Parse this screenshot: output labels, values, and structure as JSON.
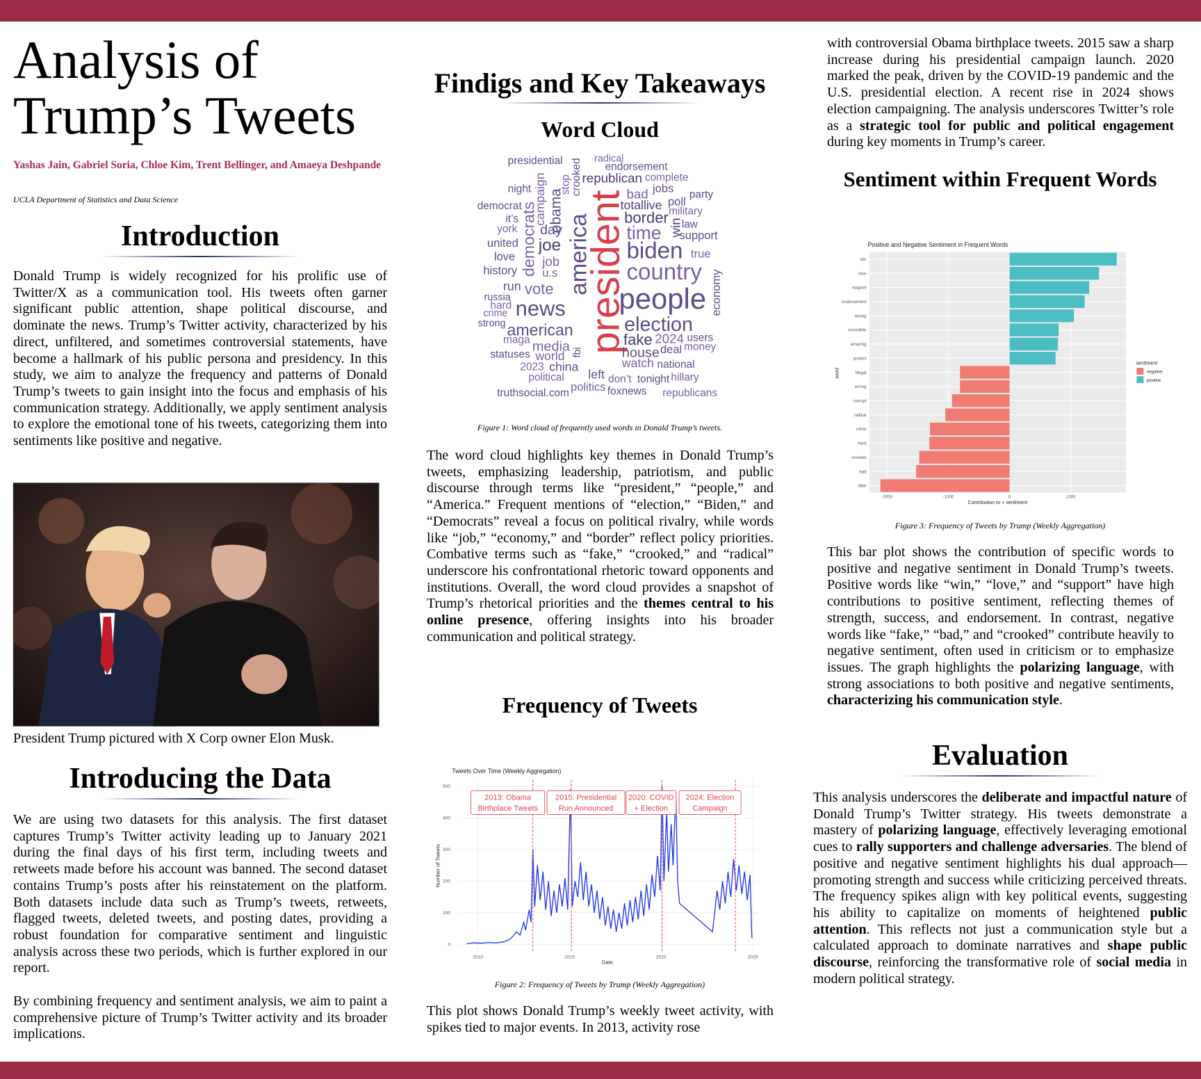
{
  "title": "Analysis of Trump’s Tweets",
  "authors": "Yashas Jain, Gabriel Soria, Chloe Kim, Trent Bellinger, and Amaeya Deshpande",
  "affiliation": "UCLA Department of Statistics and Data Science",
  "introduction": {
    "heading": "Introduction",
    "text": [
      {
        "text": "Donald Trump is widely recognized for his prolific use of Twitter/X as a communication tool. His tweets often garner significant public attention, shape political discourse, and dominate the news. Trump’s Twitter activity, characterized by his direct, unfiltered, and sometimes controversial statements, have become a hallmark of his public persona and presidency. In this study, we aim to analyze the frequency and patterns of Donald Trump’s tweets to gain insight into the focus and emphasis of his communication strategy. Additionally, we apply sentiment analysis to explore the emotional tone of his tweets, categorizing them into sentiments like positive and negative."
      }
    ]
  },
  "photo": {
    "caption": "President Trump pictured with X Corp owner Elon Musk."
  },
  "data_section": {
    "heading": "Introducing the Data",
    "text": [
      {
        "text": "We are using two datasets for this analysis. The first dataset captures Trump’s Twitter activity leading up to January 2021 during the final days of his first term, including tweets and retweets made before his account was banned. The second dataset contains Trump’s posts after his reinstatement on the platform. Both datasets include data such as Trump’s tweets, retweets, flagged tweets, deleted tweets, and posting dates, providing a robust foundation for comparative sentiment and linguistic analysis across these two periods, which is further explored in our report."
      }
    ],
    "text_2": [
      {
        "text": "By combining frequency and sentiment analysis, we aim to paint a comprehensive picture of Trump’s Twitter activity and its broader implications."
      }
    ]
  },
  "findings": {
    "heading": "Findigs and Key Takeaways"
  },
  "word_cloud": {
    "heading": "Word Cloud",
    "caption": "Figure 1: Word cloud of frequently used words in Donald Trump’s tweets.",
    "text": [
      {
        "text": "The word cloud highlights key themes in Donald Trump’s tweets, emphasizing leadership, patriotism, and public discourse through terms like “president,” “people,” and “America.” Frequent mentions of “election,” “Biden,” and “Democrats” reveal a focus on political rivalry, while words like “job,” “economy,” and “border” reflect policy priorities. Combative terms such as “fake,” “crooked,” and “radical” underscore his confrontational rhetoric toward opponents and institutions. Overall, the word cloud provides a snapshot of Trump’s rhetorical priorities and the "
      },
      {
        "text": "themes central to his online presence",
        "bold": true
      },
      {
        "text": ", offering insights into his broader communication and political strategy."
      }
    ]
  },
  "frequency": {
    "heading": "Frequency of Tweets",
    "caption": "Figure 2: Frequency of Tweets by Trump (Weekly Aggregation)",
    "text": [
      {
        "text": "This plot shows Donald Trump’s weekly tweet activity, with spikes tied to major events. In 2013, activity rose"
      }
    ],
    "text_continued": [
      {
        "text": "with controversial Obama birthplace tweets. 2015 saw a sharp increase during his presidential campaign launch. 2020 marked the peak, driven by the COVID-19 pandemic and the U.S. presidential election. A recent rise in 2024 shows election campaigning. The analysis underscores Twitter’s role as a "
      },
      {
        "text": "strategic tool for public and political engagement",
        "bold": true
      },
      {
        "text": " during key moments in Trump’s career."
      }
    ]
  },
  "sentiment": {
    "heading": "Sentiment within Frequent Words",
    "caption": "Figure 3: Frequency of Tweets by Trump (Weekly Aggregation)",
    "text": [
      {
        "text": "This bar plot shows the contribution of specific words to positive and negative sentiment in Donald Trump’s tweets. Positive words like “win,” “love,” and “support” have high contributions to positive sentiment, reflecting themes of strength, success, and endorsement. In contrast, negative words like “fake,” “bad,” and “crooked” contribute heavily to negative sentiment, often used in criticism or to emphasize issues. The graph highlights the "
      },
      {
        "text": "polarizing language",
        "bold": true
      },
      {
        "text": ", with strong associations to both positive and negative sentiments, "
      },
      {
        "text": "characterizing his communication style",
        "bold": true
      },
      {
        "text": "."
      }
    ]
  },
  "evaluation": {
    "heading": "Evaluation",
    "text": [
      {
        "text": "This analysis underscores the "
      },
      {
        "text": "deliberate and impactful nature",
        "bold": true
      },
      {
        "text": " of Donald Trump’s Twitter strategy. His tweets demonstrate a mastery of "
      },
      {
        "text": "polarizing language",
        "bold": true
      },
      {
        "text": ", effectively leveraging emotional cues to "
      },
      {
        "text": "rally supporters and challenge adversaries",
        "bold": true
      },
      {
        "text": ". The blend of positive and negative sentiment highlights his dual approach—promoting strength and success while criticizing perceived threats. The frequency spikes align with key political events, suggesting his ability to capitalize on moments of heightened "
      },
      {
        "text": "public attention",
        "bold": true
      },
      {
        "text": ". This reflects not just a communication style but a calculated approach to dominate narratives and "
      },
      {
        "text": "shape public discourse",
        "bold": true
      },
      {
        "text": ", reinforcing the transformative role of "
      },
      {
        "text": "social media",
        "bold": true
      },
      {
        "text": " in modern political strategy."
      }
    ]
  },
  "chart_data": [
    {
      "type": "wordcloud",
      "words": [
        "presidential",
        "radical",
        "endorsement",
        "night",
        "campaign",
        "obama",
        "stop",
        "crooked",
        "republican",
        "complete",
        "jobs",
        "bad",
        "party",
        "democrat",
        "totallive",
        "poll",
        "military",
        "it’s",
        "democrats",
        "day",
        "america",
        "president",
        "win",
        "law",
        "border",
        "york",
        "support",
        "time",
        "united",
        "joe",
        "biden",
        "true",
        "love",
        "job",
        "history",
        "u.s",
        "country",
        "economy",
        "run",
        "vote",
        "people",
        "russia",
        "hard",
        "news",
        "crime",
        "election",
        "strong",
        "american",
        "maga",
        "fake",
        "2024",
        "users",
        "media",
        "deal",
        "money",
        "statuses",
        "world",
        "fbi",
        "house",
        "watch",
        "national",
        "2023",
        "china",
        "political",
        "left",
        "don’t",
        "tonight",
        "hillary",
        "truthsocial.com",
        "politics",
        "foxnews",
        "republicans"
      ]
    },
    {
      "type": "line",
      "title": "Tweets Over Time (Weekly Aggregation)",
      "xlabel": "Date",
      "ylabel": "Number of Tweets",
      "color": "#1f35e6",
      "x": [
        2009.4,
        2009.8,
        2010.2,
        2010.6,
        2011.0,
        2011.4,
        2011.7,
        2011.9,
        2012.1,
        2012.3,
        2012.5,
        2012.6,
        2012.8,
        2012.9,
        2013.0,
        2013.1,
        2013.25,
        2013.4,
        2013.55,
        2013.7,
        2013.85,
        2014.0,
        2014.15,
        2014.3,
        2014.45,
        2014.6,
        2014.75,
        2014.9,
        2015.05,
        2015.15,
        2015.3,
        2015.45,
        2015.6,
        2015.75,
        2015.9,
        2016.05,
        2016.2,
        2016.35,
        2016.5,
        2016.65,
        2016.8,
        2016.95,
        2017.1,
        2017.25,
        2017.4,
        2017.55,
        2017.7,
        2017.85,
        2018.0,
        2018.15,
        2018.3,
        2018.45,
        2018.6,
        2018.75,
        2018.9,
        2019.05,
        2019.2,
        2019.35,
        2019.5,
        2019.65,
        2019.8,
        2019.95,
        2020.05,
        2020.15,
        2020.3,
        2020.4,
        2020.55,
        2020.65,
        2020.8,
        2020.9,
        2021.0,
        2022.8,
        2022.9,
        2023.05,
        2023.2,
        2023.35,
        2023.5,
        2023.65,
        2023.8,
        2023.95,
        2024.1,
        2024.25,
        2024.4,
        2024.55,
        2024.7,
        2024.85,
        2024.95
      ],
      "values": [
        3,
        5,
        4,
        6,
        5,
        8,
        15,
        25,
        40,
        30,
        70,
        45,
        110,
        70,
        300,
        120,
        250,
        140,
        230,
        110,
        200,
        90,
        170,
        100,
        190,
        120,
        210,
        110,
        490,
        120,
        200,
        150,
        260,
        140,
        230,
        120,
        190,
        100,
        170,
        80,
        150,
        60,
        120,
        50,
        110,
        40,
        100,
        50,
        130,
        60,
        140,
        70,
        150,
        80,
        170,
        90,
        190,
        110,
        220,
        150,
        280,
        170,
        500,
        200,
        420,
        230,
        380,
        250,
        480,
        200,
        130,
        40,
        90,
        170,
        110,
        200,
        130,
        230,
        150,
        270,
        170,
        250,
        160,
        230,
        140,
        220,
        20
      ],
      "xlim": [
        2009,
        2025.3
      ],
      "ylim": [
        -25,
        520
      ],
      "xticks": [
        2010,
        2015,
        2020,
        2025
      ],
      "yticks": [
        0,
        100,
        200,
        300,
        400,
        500
      ],
      "grid": true,
      "annotations": [
        {
          "x": 2013,
          "lines": [
            "2013: Obama",
            "Birthplace Tweets"
          ]
        },
        {
          "x": 2015.1,
          "lines": [
            "2015: Presidential",
            "Run Announced"
          ]
        },
        {
          "x": 2020.05,
          "lines": [
            "2020: COVID",
            "+ Election"
          ]
        },
        {
          "x": 2024.05,
          "lines": [
            "2024: Election",
            "Campaign"
          ]
        }
      ],
      "annotation_color": "#e0474c"
    },
    {
      "type": "barh",
      "title": "Positive and Negative Sentiment in Frequent Words",
      "xlabel": "Contribution to + sentiment",
      "ylabel": "word",
      "categories": [
        "win",
        "love",
        "support",
        "endorsement",
        "strong",
        "incredible",
        "amazing",
        "protect",
        "illegal",
        "wrong",
        "corrupt",
        "radical",
        "crime",
        "hard",
        "crooked",
        "bad",
        "fake"
      ],
      "values": [
        1750,
        1460,
        1300,
        1225,
        1050,
        800,
        790,
        750,
        -810,
        -810,
        -940,
        -1050,
        -1300,
        -1310,
        -1475,
        -1525,
        -2110
      ],
      "xlim": [
        -2290,
        1900
      ],
      "xticks": [
        -2000,
        -1000,
        0,
        1000
      ],
      "grid": true,
      "legend_title": "sentiment",
      "legend": [
        {
          "name": "negative",
          "color": "#f07b72"
        },
        {
          "name": "positive",
          "color": "#4cbdc2"
        }
      ]
    }
  ]
}
